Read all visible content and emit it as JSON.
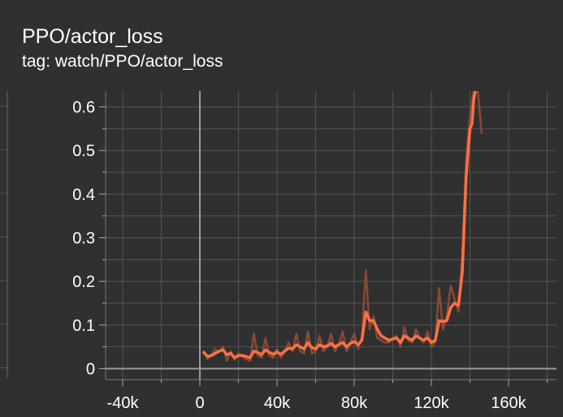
{
  "card": {
    "title": "PPO/actor_loss",
    "subtitle": "tag: watch/PPO/actor_loss"
  },
  "colors": {
    "background": "#303030",
    "grid": "#555555",
    "zero_axis": "#9a9a9a",
    "line": "#ff7043",
    "raw_line": "#8a4a35"
  },
  "chart_data": {
    "type": "line",
    "title": "PPO/actor_loss",
    "xlabel": "",
    "ylabel": "",
    "xlim": [
      -50000,
      180000
    ],
    "ylim": [
      -0.02,
      0.64
    ],
    "x_ticks": [
      -40000,
      0,
      40000,
      80000,
      120000,
      160000
    ],
    "x_tick_labels": [
      "-40k",
      "0",
      "40k",
      "80k",
      "120k",
      "160k"
    ],
    "y_ticks": [
      0,
      0.1,
      0.2,
      0.3,
      0.4,
      0.5,
      0.6
    ],
    "y_tick_labels": [
      "0",
      "0.1",
      "0.2",
      "0.3",
      "0.4",
      "0.5",
      "0.6"
    ],
    "grid": true,
    "series": [
      {
        "role": "smoothed",
        "color": "#ff7043",
        "x": [
          2000,
          4000,
          6000,
          8000,
          10000,
          12000,
          14000,
          16000,
          18000,
          20000,
          22000,
          24000,
          26000,
          28000,
          30000,
          32000,
          34000,
          36000,
          38000,
          40000,
          42000,
          44000,
          46000,
          48000,
          50000,
          52000,
          54000,
          56000,
          58000,
          60000,
          62000,
          64000,
          66000,
          68000,
          70000,
          72000,
          74000,
          76000,
          78000,
          80000,
          82000,
          84000,
          86000,
          88000,
          90000,
          92000,
          94000,
          96000,
          98000,
          100000,
          102000,
          104000,
          106000,
          108000,
          110000,
          112000,
          114000,
          116000,
          118000,
          120000,
          122000,
          124000,
          126000,
          128000,
          130000,
          132000,
          134000,
          136000,
          138000,
          140000,
          141000,
          142000,
          143000,
          144000
        ],
        "y": [
          0.037,
          0.028,
          0.03,
          0.035,
          0.04,
          0.043,
          0.032,
          0.035,
          0.025,
          0.03,
          0.03,
          0.028,
          0.025,
          0.04,
          0.037,
          0.032,
          0.043,
          0.037,
          0.033,
          0.038,
          0.033,
          0.04,
          0.047,
          0.045,
          0.055,
          0.05,
          0.045,
          0.06,
          0.048,
          0.045,
          0.055,
          0.05,
          0.052,
          0.058,
          0.05,
          0.055,
          0.06,
          0.05,
          0.058,
          0.062,
          0.055,
          0.065,
          0.13,
          0.11,
          0.11,
          0.09,
          0.075,
          0.07,
          0.065,
          0.068,
          0.07,
          0.06,
          0.075,
          0.07,
          0.065,
          0.075,
          0.07,
          0.065,
          0.07,
          0.06,
          0.065,
          0.11,
          0.108,
          0.11,
          0.14,
          0.15,
          0.145,
          0.22,
          0.44,
          0.55,
          0.56,
          0.62,
          0.64,
          0.64
        ]
      },
      {
        "role": "raw",
        "color": "#8a4a35",
        "x": [
          2000,
          4000,
          6000,
          8000,
          10000,
          12000,
          14000,
          16000,
          18000,
          20000,
          22000,
          24000,
          26000,
          28000,
          30000,
          32000,
          34000,
          36000,
          38000,
          40000,
          42000,
          44000,
          46000,
          48000,
          50000,
          52000,
          54000,
          56000,
          58000,
          60000,
          62000,
          64000,
          66000,
          68000,
          70000,
          72000,
          74000,
          76000,
          78000,
          80000,
          82000,
          84000,
          86000,
          88000,
          90000,
          92000,
          94000,
          96000,
          98000,
          100000,
          102000,
          104000,
          106000,
          108000,
          110000,
          112000,
          114000,
          116000,
          118000,
          120000,
          122000,
          124000,
          126000,
          128000,
          130000,
          132000,
          134000,
          136000,
          138000,
          140000,
          142000,
          144000,
          146000
        ],
        "y": [
          0.04,
          0.022,
          0.032,
          0.045,
          0.038,
          0.05,
          0.018,
          0.04,
          0.02,
          0.035,
          0.028,
          0.022,
          0.018,
          0.08,
          0.03,
          0.025,
          0.07,
          0.03,
          0.025,
          0.045,
          0.025,
          0.04,
          0.06,
          0.04,
          0.08,
          0.04,
          0.035,
          0.085,
          0.035,
          0.04,
          0.075,
          0.04,
          0.05,
          0.08,
          0.04,
          0.055,
          0.085,
          0.04,
          0.06,
          0.08,
          0.045,
          0.075,
          0.225,
          0.09,
          0.12,
          0.07,
          0.065,
          0.06,
          0.06,
          0.07,
          0.075,
          0.05,
          0.095,
          0.065,
          0.06,
          0.09,
          0.07,
          0.06,
          0.085,
          0.05,
          0.06,
          0.185,
          0.09,
          0.12,
          0.19,
          0.16,
          0.13,
          0.26,
          0.48,
          0.58,
          0.64,
          0.64,
          0.54
        ]
      }
    ]
  }
}
